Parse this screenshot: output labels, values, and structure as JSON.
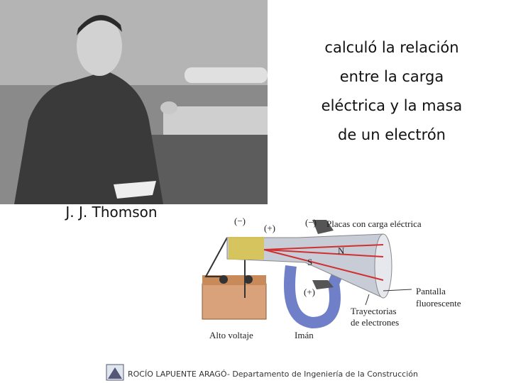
{
  "photo_caption": "J. J. Thomson",
  "text_lines": [
    "calculó la relación",
    "entre la carga",
    "eléctrica y la masa",
    "de un electrón"
  ],
  "diagram": {
    "labels": [
      "(−)",
      "(+)",
      "(−)",
      "Placas con carga eléctrica",
      "N",
      "S",
      "(+)",
      "Pantalla",
      "fluorescente",
      "Trayectorias",
      "de electrones",
      "Alto voltaje",
      "Imán"
    ]
  },
  "footer": "ROCÍO LAPUENTE ARAGÓ- Departamento de Ingeniería de la Construcción"
}
